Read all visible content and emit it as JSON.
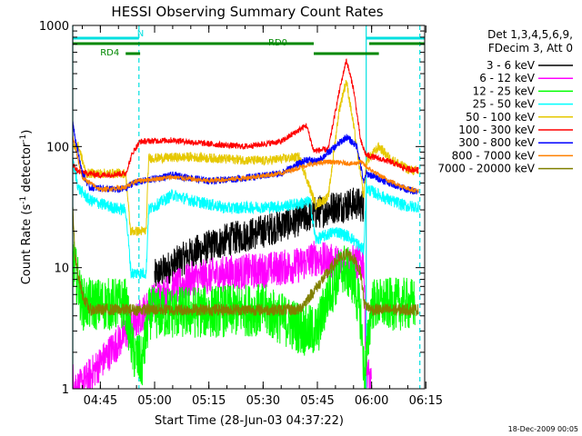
{
  "chart_data": {
    "type": "line",
    "title": "HESSI Observing Summary Count Rates",
    "xlabel": "Start Time (28-Jun-03 04:37:22)",
    "ylabel": "Count Rate (s",
    "ylabel_sup1": "-1",
    "ylabel_mid": " detector",
    "ylabel_sup2": "-1",
    "ylabel_end": ")",
    "y_scale": "log",
    "ylim": [
      1,
      1000
    ],
    "xlim": [
      "04:37:22",
      "06:14:40"
    ],
    "x_ticks": [
      "04:45",
      "05:00",
      "05:15",
      "05:30",
      "05:45",
      "06:00",
      "06:15"
    ],
    "y_ticks": [
      "1",
      "10",
      "100",
      "1000"
    ],
    "legend_position": "top-right (outside plot)",
    "legend_header": [
      "Det 1,3,4,5,6,9,",
      "FDecim 3, Att 0"
    ],
    "footer": "18-Dec-2009 00:05",
    "segments": [
      {
        "label": "N",
        "color": "#00e0e0",
        "row": "top",
        "from": "04:37:22",
        "to": "04:55:40"
      },
      {
        "label": "",
        "color": "#00e0e0",
        "row": "top",
        "from": "05:58:30",
        "to": "06:14:40"
      },
      {
        "label": "RD0",
        "color": "#008800",
        "row": "middle",
        "from": "04:37:22",
        "to": "05:44:00"
      },
      {
        "label": "",
        "color": "#008800",
        "row": "middle",
        "from": "05:59:20",
        "to": "06:14:40"
      },
      {
        "label": "RD4",
        "color": "#008800",
        "row": "bottom",
        "from": "04:52:00",
        "to": "04:56:00"
      },
      {
        "label": "",
        "color": "#008800",
        "row": "bottom",
        "from": "05:44:00",
        "to": "06:02:00"
      }
    ],
    "vlines": [
      {
        "x": "04:37:22",
        "style": "solid",
        "color": "#00e0e0"
      },
      {
        "x": "04:55:40",
        "style": "dashed",
        "color": "#00e0e0"
      },
      {
        "x": "05:58:30",
        "style": "solid",
        "color": "#00e0e0"
      },
      {
        "x": "06:13:20",
        "style": "dashed",
        "color": "#00e0e0"
      }
    ],
    "series": [
      {
        "name": "3 - 6 keV",
        "color": "#000000",
        "noise": 0.14,
        "points": [
          [
            "05:00",
            8.5
          ],
          [
            "05:10",
            13
          ],
          [
            "05:20",
            17
          ],
          [
            "05:30",
            20
          ],
          [
            "05:40",
            25
          ],
          [
            "05:44",
            28
          ],
          [
            "05:50",
            32
          ],
          [
            "05:56",
            34
          ],
          [
            "05:57:50",
            32
          ]
        ]
      },
      {
        "name": "6 - 12 keV",
        "color": "#ff00ff",
        "noise": 0.15,
        "points": [
          [
            "04:37:22",
            1.2
          ],
          [
            "04:39",
            1.0
          ],
          [
            "05:00",
            5.5
          ],
          [
            "05:10",
            8
          ],
          [
            "05:20",
            9
          ],
          [
            "05:30",
            9.5
          ],
          [
            "05:40",
            10.5
          ],
          [
            "05:44",
            12
          ],
          [
            "05:50",
            11
          ],
          [
            "05:57:50",
            11
          ],
          [
            "05:58:30",
            1.6
          ],
          [
            "06:00",
            1.0
          ]
        ]
      },
      {
        "name": "12 - 25 keV",
        "color": "#00ff00",
        "noise": 0.22,
        "points": [
          [
            "04:37:22",
            12
          ],
          [
            "04:40",
            5
          ],
          [
            "04:45",
            5
          ],
          [
            "04:52",
            5
          ],
          [
            "04:54",
            2
          ],
          [
            "04:56:30",
            1.6
          ],
          [
            "04:58:30",
            4.2
          ],
          [
            "05:30",
            4.5
          ],
          [
            "05:42",
            3
          ],
          [
            "05:45",
            3
          ],
          [
            "05:48",
            6
          ],
          [
            "05:52",
            10
          ],
          [
            "05:55",
            8
          ],
          [
            "05:57",
            4
          ],
          [
            "05:58",
            1.2
          ],
          [
            "06:00",
            5
          ],
          [
            "06:12",
            5
          ]
        ]
      },
      {
        "name": "25 - 50 keV",
        "color": "#00ffff",
        "noise": 0.05,
        "points": [
          [
            "04:37:22",
            75
          ],
          [
            "04:39",
            45
          ],
          [
            "04:42",
            36
          ],
          [
            "04:49",
            31
          ],
          [
            "04:52",
            30
          ],
          [
            "04:53:30",
            9
          ],
          [
            "04:57:40",
            9
          ],
          [
            "04:58:20",
            30
          ],
          [
            "05:05",
            40
          ],
          [
            "05:10",
            36
          ],
          [
            "05:20",
            31
          ],
          [
            "05:35",
            32
          ],
          [
            "05:43",
            35
          ],
          [
            "05:44:30",
            17
          ],
          [
            "05:50",
            20
          ],
          [
            "05:54",
            18
          ],
          [
            "05:57:50",
            14
          ],
          [
            "05:58:30",
            45
          ],
          [
            "06:05",
            36
          ],
          [
            "06:10",
            32
          ],
          [
            "06:13",
            32
          ]
        ]
      },
      {
        "name": "50 - 100 keV",
        "color": "#e6c800",
        "noise": 0.04,
        "points": [
          [
            "04:37:22",
            100
          ],
          [
            "04:39",
            100
          ],
          [
            "04:41",
            60
          ],
          [
            "04:52",
            60
          ],
          [
            "04:53:20",
            20
          ],
          [
            "04:57:40",
            20
          ],
          [
            "04:58:20",
            80
          ],
          [
            "05:10",
            82
          ],
          [
            "05:30",
            76
          ],
          [
            "05:40",
            82
          ],
          [
            "05:44:30",
            33
          ],
          [
            "05:48",
            38
          ],
          [
            "05:51",
            200
          ],
          [
            "05:53",
            350
          ],
          [
            "05:55",
            150
          ],
          [
            "05:57:50",
            38
          ],
          [
            "05:58:30",
            75
          ],
          [
            "06:02",
            100
          ],
          [
            "06:05",
            80
          ],
          [
            "06:10",
            65
          ],
          [
            "06:13",
            62
          ]
        ]
      },
      {
        "name": "100 - 300 keV",
        "color": "#ff0000",
        "noise": 0.025,
        "points": [
          [
            "04:37:22",
            70
          ],
          [
            "04:39",
            62
          ],
          [
            "04:42",
            60
          ],
          [
            "04:45",
            58
          ],
          [
            "04:52",
            60
          ],
          [
            "04:54",
            90
          ],
          [
            "04:56",
            110
          ],
          [
            "05:05",
            113
          ],
          [
            "05:15",
            105
          ],
          [
            "05:25",
            100
          ],
          [
            "05:35",
            110
          ],
          [
            "05:42",
            150
          ],
          [
            "05:44",
            92
          ],
          [
            "05:48",
            95
          ],
          [
            "05:51",
            280
          ],
          [
            "05:53",
            520
          ],
          [
            "05:55",
            300
          ],
          [
            "05:57",
            110
          ],
          [
            "05:58:30",
            85
          ],
          [
            "06:05",
            75
          ],
          [
            "06:10",
            65
          ],
          [
            "06:13",
            64
          ]
        ]
      },
      {
        "name": "300 - 800 keV",
        "color": "#0000ff",
        "noise": 0.03,
        "points": [
          [
            "04:37:22",
            165
          ],
          [
            "04:38",
            120
          ],
          [
            "04:40",
            60
          ],
          [
            "04:42",
            46
          ],
          [
            "04:50",
            44
          ],
          [
            "04:52",
            45
          ],
          [
            "04:54",
            50
          ],
          [
            "05:05",
            58
          ],
          [
            "05:15",
            52
          ],
          [
            "05:25",
            55
          ],
          [
            "05:35",
            60
          ],
          [
            "05:42",
            78
          ],
          [
            "05:45",
            75
          ],
          [
            "05:50",
            100
          ],
          [
            "05:53",
            120
          ],
          [
            "05:56",
            100
          ],
          [
            "05:57:50",
            50
          ],
          [
            "05:58:30",
            60
          ],
          [
            "06:05",
            50
          ],
          [
            "06:10",
            44
          ],
          [
            "06:13",
            42
          ]
        ]
      },
      {
        "name": "800 - 7000 keV",
        "color": "#ff8000",
        "noise": 0.02,
        "points": [
          [
            "04:37:22",
            120
          ],
          [
            "04:40",
            55
          ],
          [
            "04:45",
            44
          ],
          [
            "04:52",
            46
          ],
          [
            "04:55",
            52
          ],
          [
            "05:05",
            56
          ],
          [
            "05:15",
            52
          ],
          [
            "05:25",
            55
          ],
          [
            "05:35",
            60
          ],
          [
            "05:42",
            70
          ],
          [
            "05:48",
            75
          ],
          [
            "05:55",
            72
          ],
          [
            "05:57",
            75
          ],
          [
            "05:58:30",
            68
          ],
          [
            "06:02",
            58
          ],
          [
            "06:05",
            52
          ],
          [
            "06:10",
            45
          ],
          [
            "06:13",
            43
          ]
        ]
      },
      {
        "name": "7000 - 20000 keV",
        "color": "#808000",
        "noise": 0.05,
        "points": [
          [
            "04:37:22",
            30
          ],
          [
            "04:38",
            12
          ],
          [
            "04:40",
            6
          ],
          [
            "04:42",
            4.5
          ],
          [
            "04:52",
            4.5
          ],
          [
            "04:56",
            4.5
          ],
          [
            "05:10",
            4.5
          ],
          [
            "05:30",
            4.5
          ],
          [
            "05:40",
            4.5
          ],
          [
            "05:45",
            7
          ],
          [
            "05:50",
            11
          ],
          [
            "05:53",
            13
          ],
          [
            "05:55",
            12
          ],
          [
            "05:57",
            9
          ],
          [
            "05:58",
            5
          ],
          [
            "06:00",
            4.5
          ],
          [
            "06:13",
            4.5
          ]
        ]
      }
    ]
  }
}
